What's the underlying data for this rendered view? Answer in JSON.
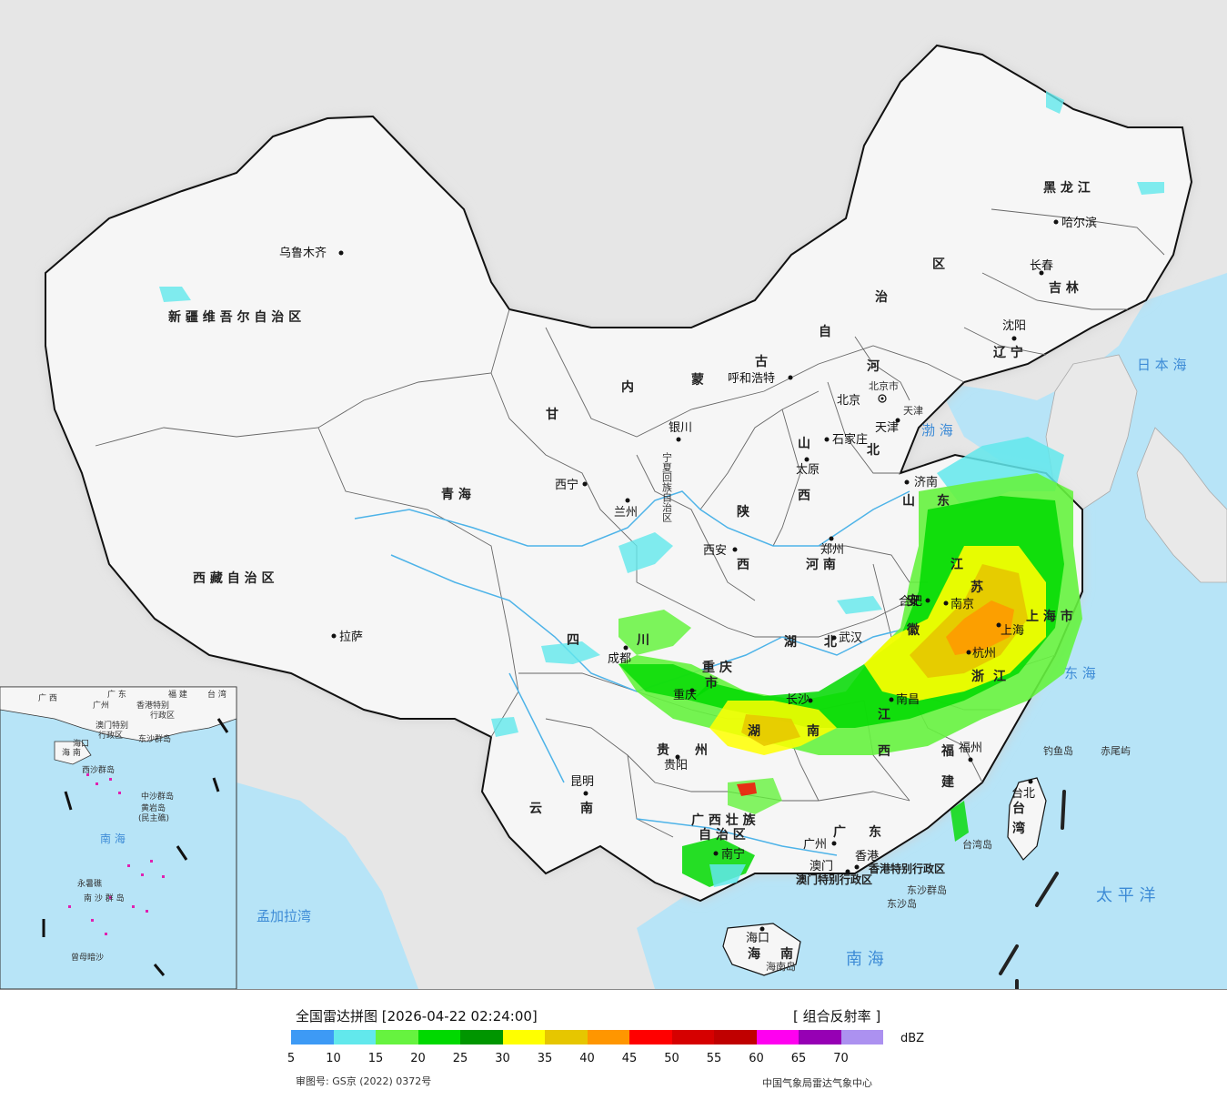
{
  "map": {
    "provinces": [
      "新 疆 维 吾 尔 自 治 区",
      "西 藏 自 治 区",
      "青 海",
      "甘",
      "内",
      "蒙",
      "古",
      "自",
      "治",
      "区",
      "黑 龙 江",
      "吉 林",
      "辽 宁",
      "河",
      "北",
      "山",
      "西",
      "陕",
      "西",
      "河 南",
      "山",
      "东",
      "江",
      "苏",
      "安",
      "徽",
      "浙",
      "江",
      "湖",
      "北",
      "湖",
      "南",
      "江",
      "西",
      "福",
      "建",
      "四",
      "川",
      "重 庆",
      "市",
      "贵",
      "州",
      "云",
      "南",
      "广 西 壮 族",
      "自 治 区",
      "广",
      "东",
      "海",
      "南",
      "台",
      "湾",
      "上 海 市",
      "宁夏回族自治区",
      "北京市",
      "天津"
    ],
    "cities": [
      "乌鲁木齐",
      "拉萨",
      "西宁",
      "兰州",
      "银川",
      "呼和浩特",
      "北京",
      "天津",
      "石家庄",
      "太原",
      "哈尔滨",
      "长春",
      "沈阳",
      "济南",
      "郑州",
      "西安",
      "合肥",
      "南京",
      "上海",
      "杭州",
      "武汉",
      "长沙",
      "南昌",
      "福州",
      "台北",
      "成都",
      "重庆",
      "贵阳",
      "昆明",
      "南宁",
      "广州",
      "香港",
      "澳门",
      "海口"
    ],
    "seas": [
      "日 本 海",
      "渤 海",
      "东 海",
      "太 平 洋",
      "南 海",
      "孟加拉湾"
    ],
    "regions": [
      "香港特别行政区",
      "澳门特别行政区",
      "东沙群岛",
      "东沙岛",
      "钓鱼岛",
      "赤尾屿",
      "台湾岛",
      "海南岛"
    ],
    "inset": {
      "labels": [
        "广 西",
        "广 东",
        "福 建",
        "台 湾",
        "广州",
        "香港特别",
        "行政区",
        "澳门特别",
        "行政区",
        "东沙群岛",
        "海口",
        "海 南",
        "西沙群岛",
        "中沙群岛",
        "黄岩岛",
        "(民主礁)",
        "南 海",
        "永暑礁",
        "南 沙 群 岛",
        "曾母暗沙"
      ]
    }
  },
  "legend": {
    "title": "全国雷达拼图 [2026-04-22 02:24:00]",
    "product": "[ 组合反射率 ]",
    "unit": "dBZ",
    "colors": [
      "#3d9af5",
      "#62e8ec",
      "#66f33f",
      "#00d900",
      "#009600",
      "#ffff00",
      "#e6c600",
      "#ff9600",
      "#ff0000",
      "#d60000",
      "#c00000",
      "#ff00f0",
      "#9600b4",
      "#ac91f0"
    ],
    "ticks": [
      "5",
      "10",
      "15",
      "20",
      "25",
      "30",
      "35",
      "40",
      "45",
      "50",
      "55",
      "60",
      "65",
      "70"
    ],
    "approval": "审图号: GS京 (2022) 0372号",
    "source": "中国气象局雷达气象中心"
  }
}
